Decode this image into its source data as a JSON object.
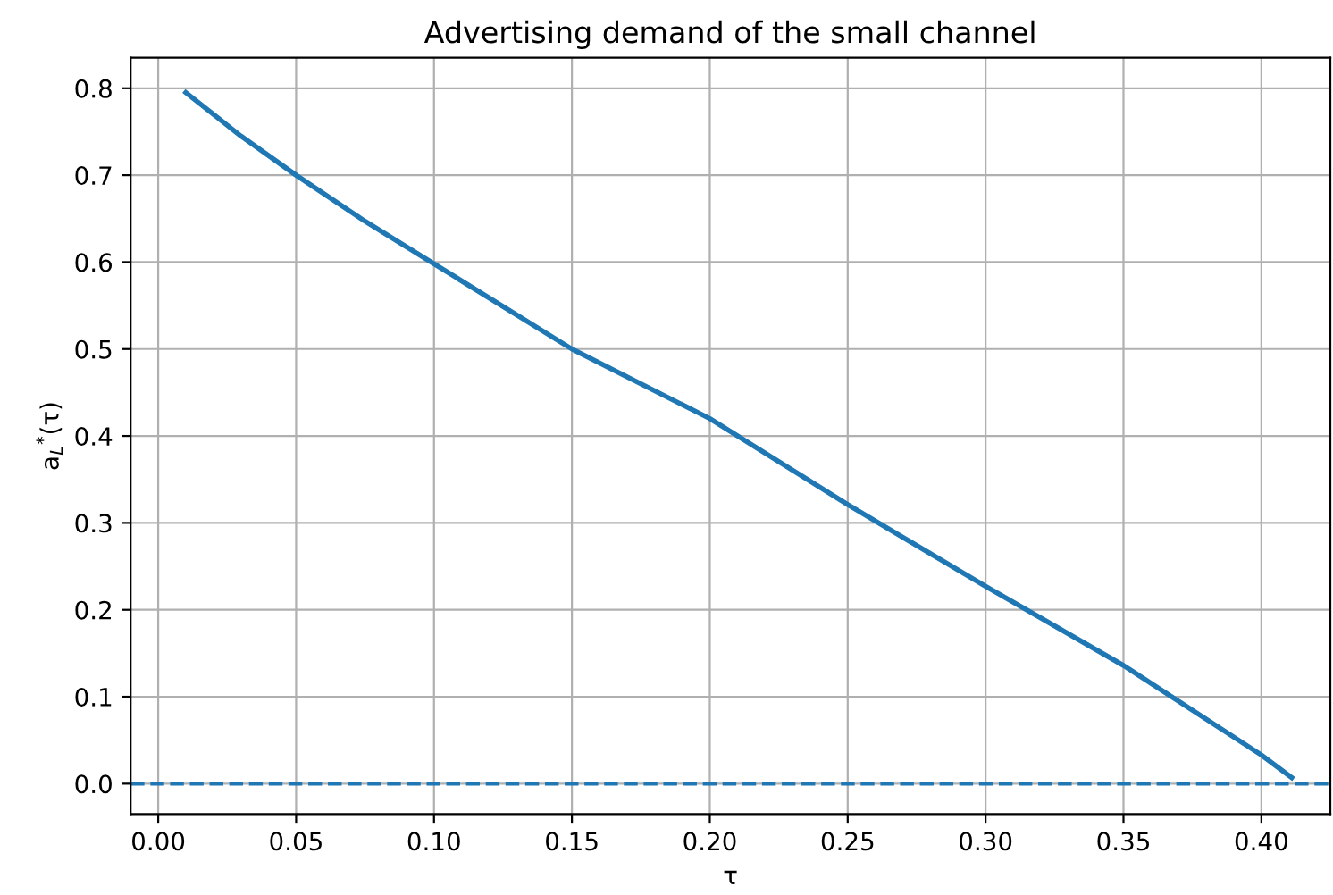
{
  "chart_data": {
    "type": "line",
    "title": "Advertising demand of the small channel",
    "xlabel": "τ",
    "ylabel": "a$_{L}$$^{*}$(τ)",
    "x": [
      0.01,
      0.03,
      0.05,
      0.075,
      0.1,
      0.15,
      0.2,
      0.25,
      0.3,
      0.35,
      0.4,
      0.411
    ],
    "series": [
      {
        "color": "#1f77b4",
        "values": [
          0.795,
          0.745,
          0.7,
          0.647,
          0.598,
          0.5,
          0.42,
          0.321,
          0.227,
          0.136,
          0.033,
          0.007
        ]
      }
    ],
    "ref_lines": [
      {
        "axis": "y",
        "value": 0,
        "color": "#1f77b4",
        "line_style": "dashed"
      }
    ],
    "xlim": [
      -0.01,
      0.425
    ],
    "ylim": [
      -0.035,
      0.835
    ],
    "xticks": [
      {
        "value": 0,
        "label": "0.00"
      },
      0.05,
      {
        "value": 0.1,
        "label": "0.10"
      },
      0.15,
      {
        "value": 0.2,
        "label": "0.20"
      },
      0.25,
      {
        "value": 0.3,
        "label": "0.30"
      },
      0.35,
      {
        "value": 0.4,
        "label": "0.40"
      }
    ],
    "yticks": [
      {
        "value": 0,
        "label": "0.0"
      },
      0.1,
      0.2,
      0.3,
      0.4,
      0.5,
      0.6,
      0.7,
      0.8
    ],
    "grid": true,
    "line_style": "solid"
  }
}
